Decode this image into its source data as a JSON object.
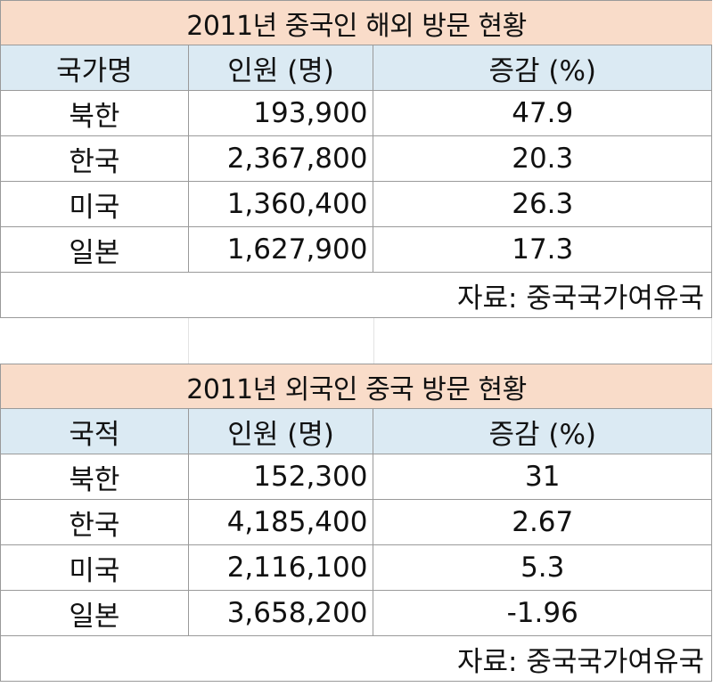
{
  "table1": {
    "title": "2011년 중국인 해외 방문 현황",
    "headers": [
      "국가명",
      "인원 (명)",
      "증감 (%)"
    ],
    "rows": [
      [
        "북한",
        "193,900",
        "47.9"
      ],
      [
        "한국",
        "2,367,800",
        "20.3"
      ],
      [
        "미국",
        "1,360,400",
        "26.3"
      ],
      [
        "일본",
        "1,627,900",
        "17.3"
      ]
    ],
    "source": "자료: 중국국가여유국"
  },
  "table2": {
    "title": "2011년 외국인 중국 방문 현황",
    "headers": [
      "국적",
      "인원 (명)",
      "증감 (%)"
    ],
    "rows": [
      [
        "북한",
        "152,300",
        "31"
      ],
      [
        "한국",
        "4,185,400",
        "2.67"
      ],
      [
        "미국",
        "2,116,100",
        "5.3"
      ],
      [
        "일본",
        "3,658,200",
        "-1.96"
      ]
    ],
    "source": "자료: 중국국가여유국"
  },
  "colors": {
    "title_bg": "#f9dcc9",
    "header_bg": "#dbeaf3",
    "grid": "#9a9a9a"
  }
}
